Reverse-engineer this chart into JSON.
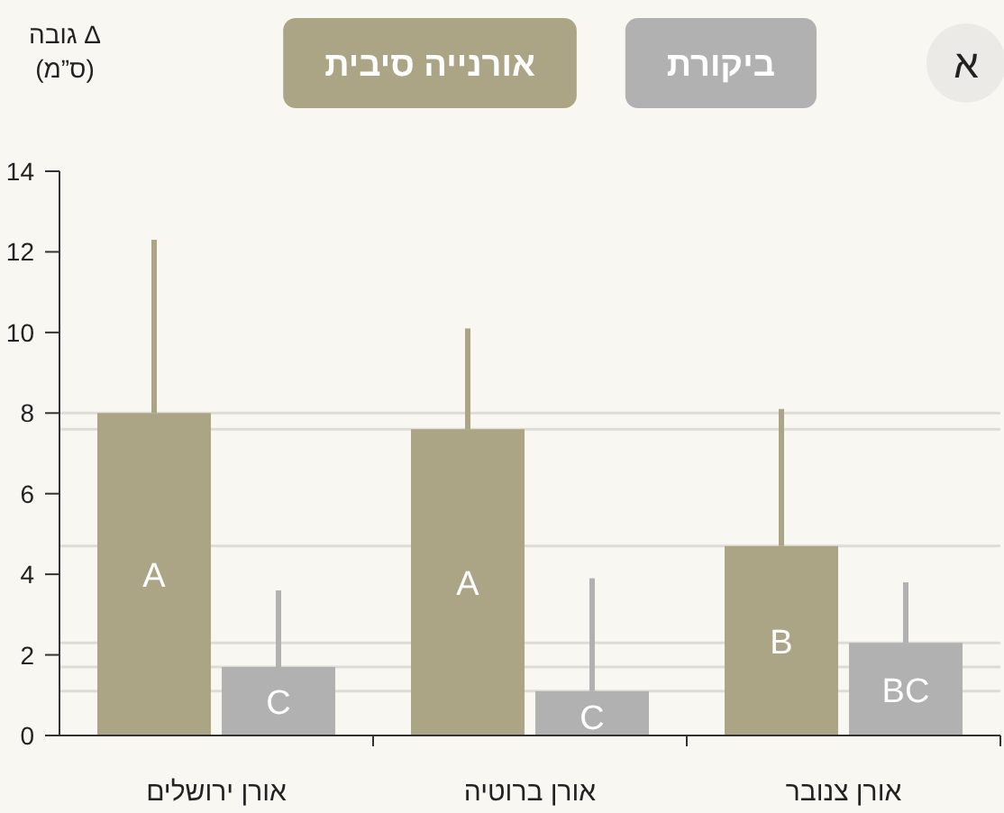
{
  "chart_data": {
    "type": "bar",
    "ylabel": "Δ גובה\n(ס”מ)",
    "annotations": [
      "א"
    ],
    "categories": [
      "אורן ירושלים",
      "אורן ברוטיה",
      "אורן צנובר"
    ],
    "series": [
      {
        "name": "אורנייה סיבית",
        "color": "#aba586",
        "values": [
          8.0,
          7.6,
          4.7
        ],
        "errors": [
          [
            8.0,
            12.3
          ],
          [
            7.6,
            10.1
          ],
          [
            4.7,
            8.1
          ]
        ],
        "value_labels": [
          "A",
          "A",
          "B"
        ]
      },
      {
        "name": "ביקורת",
        "color": "#b1b1b1",
        "values": [
          1.7,
          1.1,
          2.3
        ],
        "errors": [
          [
            1.7,
            3.6
          ],
          [
            1.1,
            3.9
          ],
          [
            2.3,
            3.8
          ]
        ],
        "value_labels": [
          "C",
          "C",
          "BC"
        ]
      }
    ],
    "ylim": [
      0,
      14
    ],
    "yticks": [
      0,
      2,
      4,
      6,
      8,
      10,
      12,
      14
    ],
    "legend": "top",
    "grid": false,
    "ref_lines": [
      {
        "axis": "y",
        "value": 8.0,
        "color": "#dedcd6"
      },
      {
        "axis": "y",
        "value": 7.6,
        "color": "#dedcd6"
      },
      {
        "axis": "y",
        "value": 4.7,
        "color": "#dedcd6"
      },
      {
        "axis": "y",
        "value": 2.3,
        "color": "#dedcd6"
      },
      {
        "axis": "y",
        "value": 1.7,
        "color": "#dedcd6"
      },
      {
        "axis": "y",
        "value": 1.1,
        "color": "#dedcd6"
      }
    ]
  }
}
